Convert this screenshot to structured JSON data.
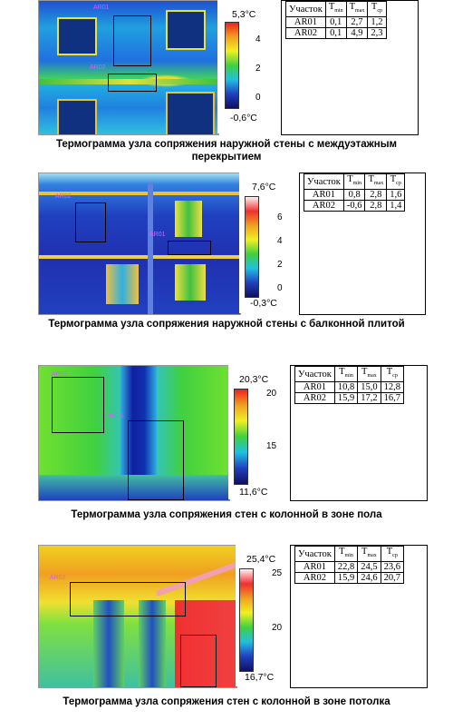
{
  "figures": [
    {
      "caption": "Термограмма узла сопряжения наружной стены с междуэтажным перекрытием",
      "tmax": "5,3°C",
      "tmin": "-0,6°C",
      "ticks": [
        "4",
        "2",
        "0"
      ],
      "areas": [
        "AR01",
        "AR02"
      ],
      "table": {
        "headers": [
          "Участок",
          "T",
          "T",
          "T"
        ],
        "header_subs": [
          "",
          "min",
          "max",
          "ср"
        ],
        "rows": [
          [
            "AR01",
            "0,1",
            "2,7",
            "1,2"
          ],
          [
            "AR02",
            "0,1",
            "4,9",
            "2,3"
          ]
        ]
      }
    },
    {
      "caption": "Термограмма узла сопряжения наружной стены с балконной плитой",
      "tmax": "7,6°C",
      "tmin": "-0,3°C",
      "ticks": [
        "6",
        "4",
        "2",
        "0"
      ],
      "areas": [
        "AR02",
        "AR01"
      ],
      "table": {
        "headers": [
          "Участок",
          "T",
          "T",
          "T"
        ],
        "header_subs": [
          "",
          "min",
          "max",
          "ср"
        ],
        "rows": [
          [
            "AR01",
            "0,8",
            "2,8",
            "1,6"
          ],
          [
            "AR02",
            "-0,6",
            "2,8",
            "1,4"
          ]
        ]
      }
    },
    {
      "caption": "Термограмма узла сопряжения стен с колонной в зоне пола",
      "tmax": "20,3°C",
      "tmin": "11,6°C",
      "ticks": [
        "20",
        "15"
      ],
      "areas": [
        "AR02",
        "AR01"
      ],
      "table": {
        "headers": [
          "Участок",
          "T",
          "T",
          "T"
        ],
        "header_subs": [
          "",
          "min",
          "max",
          "ср"
        ],
        "rows": [
          [
            "AR01",
            "10,8",
            "15,0",
            "12,8"
          ],
          [
            "AR02",
            "15,9",
            "17,2",
            "16,7"
          ]
        ]
      }
    },
    {
      "caption": "Термограмма узла сопряжения стен с колонной в зоне потолка",
      "tmax": "25,4°C",
      "tmin": "16,7°C",
      "ticks": [
        "25",
        "20"
      ],
      "areas": [
        "AR02"
      ],
      "table": {
        "headers": [
          "Участок",
          "T",
          "T",
          "T"
        ],
        "header_subs": [
          "",
          "min",
          "max",
          "ср"
        ],
        "rows": [
          [
            "AR01",
            "22,8",
            "24,5",
            "23,6"
          ],
          [
            "AR02",
            "15,9",
            "24,6",
            "20,7"
          ]
        ]
      }
    }
  ],
  "colors": {
    "cold": "#1a1aa0",
    "mid": "#2bd02b",
    "warm": "#f0e020",
    "hot": "#e82020"
  }
}
